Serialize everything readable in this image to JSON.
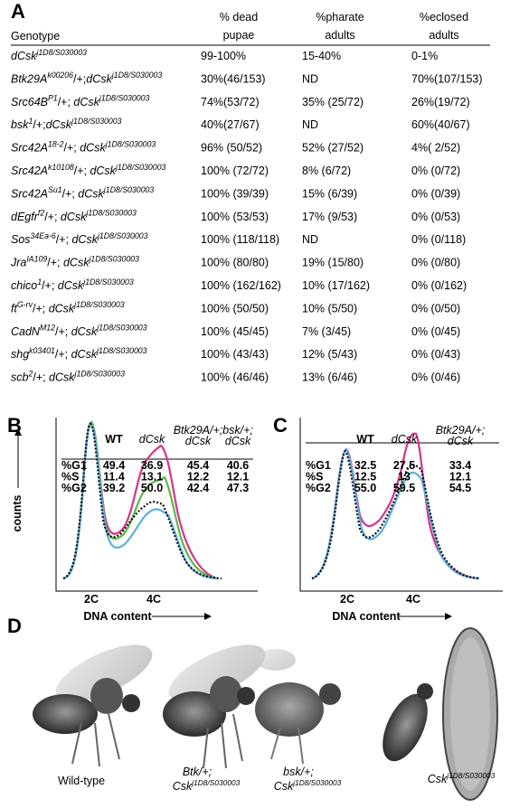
{
  "panel_a": {
    "label": "A",
    "headers": {
      "genotype": "Genotype",
      "dead": [
        "% dead",
        "pupae"
      ],
      "pharate": [
        "%pharate",
        "adults"
      ],
      "eclosed": [
        "%eclosed",
        "adults"
      ]
    },
    "rows": [
      {
        "genotype": [
          [
            "i",
            "dCsk"
          ],
          [
            "s",
            "j1D8/S030003"
          ]
        ],
        "dead": "99-100%",
        "pharate": "15-40%",
        "eclosed": "0-1%"
      },
      {
        "genotype": [
          [
            "i",
            "Btk29A"
          ],
          [
            "s",
            "k00206"
          ],
          [
            "n",
            "/+;"
          ],
          [
            "i",
            "dCsk"
          ],
          [
            "s",
            "j1D8/S030003"
          ]
        ],
        "dead": "30%(46/153)",
        "pharate": "ND",
        "eclosed": "70%(107/153)"
      },
      {
        "genotype": [
          [
            "i",
            "Src64B"
          ],
          [
            "s",
            "P1"
          ],
          [
            "n",
            "/+; "
          ],
          [
            "i",
            "dCsk"
          ],
          [
            "s",
            "j1D8/S030003"
          ]
        ],
        "dead": "74%(53/72)",
        "pharate": "35% (25/72)",
        "eclosed": "26%(19/72)"
      },
      {
        "genotype": [
          [
            "i",
            "bsk"
          ],
          [
            "s",
            "1"
          ],
          [
            "n",
            "/+;"
          ],
          [
            "i",
            "dCsk"
          ],
          [
            "s",
            "j1D8/S030003"
          ]
        ],
        "dead": "40%(27/67)",
        "pharate": "ND",
        "eclosed": "60%(40/67)"
      },
      {
        "genotype": [
          [
            "i",
            "Src42A"
          ],
          [
            "s",
            "18-2"
          ],
          [
            "n",
            "/+; "
          ],
          [
            "i",
            "dCsk"
          ],
          [
            "s",
            "j1D8/S030003"
          ]
        ],
        "dead": "96% (50/52)",
        "pharate": "52% (27/52)",
        "eclosed": "4%( 2/52)"
      },
      {
        "genotype": [
          [
            "i",
            "Src42A"
          ],
          [
            "s",
            "k10108"
          ],
          [
            "n",
            "/+; "
          ],
          [
            "i",
            "dCsk"
          ],
          [
            "s",
            "j1D8/S030003"
          ]
        ],
        "dead": "100% (72/72)",
        "pharate": "8% (6/72)",
        "eclosed": "0% (0/72)"
      },
      {
        "genotype": [
          [
            "i",
            "Src42A"
          ],
          [
            "s",
            "Su1"
          ],
          [
            "n",
            "/+; "
          ],
          [
            "i",
            "dCsk"
          ],
          [
            "s",
            "j1D8/S030003"
          ]
        ],
        "dead": "100% (39/39)",
        "pharate": "15% (6/39)",
        "eclosed": "0% (0/39)"
      },
      {
        "genotype": [
          [
            "i",
            "dEgfr"
          ],
          [
            "s",
            "f2"
          ],
          [
            "n",
            "/+; "
          ],
          [
            "i",
            "dCsk"
          ],
          [
            "s",
            "j1D8/S030003"
          ]
        ],
        "dead": "100% (53/53)",
        "pharate": "17% (9/53)",
        "eclosed": "0% (0/53)"
      },
      {
        "genotype": [
          [
            "i",
            "Sos"
          ],
          [
            "s",
            "34Ea-6"
          ],
          [
            "n",
            "/+; "
          ],
          [
            "i",
            "dCsk"
          ],
          [
            "s",
            "j1D8/S030003"
          ]
        ],
        "dead": "100% (118/118)",
        "pharate": "ND",
        "eclosed": "0% (0/118)"
      },
      {
        "genotype": [
          [
            "i",
            "Jra"
          ],
          [
            "s",
            "IA109"
          ],
          [
            "n",
            "/+; "
          ],
          [
            "i",
            "dCsk"
          ],
          [
            "s",
            "j1D8/S030003"
          ]
        ],
        "dead": "100% (80/80)",
        "pharate": "19% (15/80)",
        "eclosed": "0% (0/80)"
      },
      {
        "genotype": [
          [
            "i",
            "chico"
          ],
          [
            "s",
            "1"
          ],
          [
            "n",
            "/+; "
          ],
          [
            "i",
            "dCsk"
          ],
          [
            "s",
            "j1D8/S030003"
          ]
        ],
        "dead": "100% (162/162)",
        "pharate": "10% (17/162)",
        "eclosed": "0% (0/162)"
      },
      {
        "genotype": [
          [
            "i",
            "ft"
          ],
          [
            "s",
            "G-rv"
          ],
          [
            "n",
            "/+;   "
          ],
          [
            "i",
            "dCsk"
          ],
          [
            "s",
            "j1D8/S030003"
          ]
        ],
        "dead": "100% (50/50)",
        "pharate": "10% (5/50)",
        "eclosed": "0% (0/50)"
      },
      {
        "genotype": [
          [
            "i",
            "CadN"
          ],
          [
            "s",
            "M12"
          ],
          [
            "n",
            "/+; "
          ],
          [
            "i",
            "dCsk"
          ],
          [
            "s",
            "j1D8/S030003"
          ]
        ],
        "dead": "100% (45/45)",
        "pharate": "7% (3/45)",
        "eclosed": "0% (0/45)"
      },
      {
        "genotype": [
          [
            "i",
            "shg"
          ],
          [
            "s",
            "k03401"
          ],
          [
            "n",
            "/+; "
          ],
          [
            "i",
            "dCsk"
          ],
          [
            "s",
            "j1D8/S030003"
          ]
        ],
        "dead": "100% (43/43)",
        "pharate": "12% (5/43)",
        "eclosed": "0% (0/43)"
      },
      {
        "genotype": [
          [
            "i",
            "scb"
          ],
          [
            "s",
            "2"
          ],
          [
            "n",
            "/+;  "
          ],
          [
            "i",
            "dCsk"
          ],
          [
            "s",
            "j1D8/S030003"
          ]
        ],
        "dead": "100% (46/46)",
        "pharate": "13% (6/46)",
        "eclosed": "0% (0/46)"
      }
    ]
  },
  "panel_b": {
    "label": "B",
    "columns": [
      {
        "lines": [
          "WT"
        ],
        "italic": false
      },
      {
        "lines": [
          "dCsk"
        ],
        "italic": true
      },
      {
        "lines": [
          "Btk29A/+;",
          "dCsk"
        ],
        "italic": true
      },
      {
        "lines": [
          "bsk/+;",
          "dCsk"
        ],
        "italic": true
      }
    ],
    "rows": [
      {
        "label": "%G1",
        "values": [
          "49.4",
          "36.9",
          "45.4",
          "40.6"
        ]
      },
      {
        "label": "%S",
        "values": [
          "11.4",
          "13.1",
          "12.2",
          "12.1"
        ]
      },
      {
        "label": "%G2",
        "values": [
          "39.2",
          "50.0",
          "42.4",
          "47.3"
        ]
      }
    ],
    "y_label": "counts",
    "x_ticks": [
      "2C",
      "4C"
    ],
    "x_label": "DNA content"
  },
  "panel_c": {
    "label": "C",
    "columns": [
      {
        "lines": [
          "WT"
        ],
        "italic": false
      },
      {
        "lines": [
          "dCsk"
        ],
        "italic": true
      },
      {
        "lines": [
          "Btk29A/+;",
          "dCsk"
        ],
        "italic": true
      }
    ],
    "rows": [
      {
        "label": "%G1",
        "values": [
          "32.5",
          "27.5",
          "33.4"
        ]
      },
      {
        "label": "%S",
        "values": [
          "12.5",
          "13",
          "12.1"
        ]
      },
      {
        "label": "%G2",
        "values": [
          "55.0",
          "59.5",
          "54.5"
        ]
      }
    ],
    "x_ticks": [
      "2C",
      "4C"
    ],
    "x_label": "DNA content"
  },
  "panel_d": {
    "label": "D",
    "captions": [
      [
        [
          [
            "n",
            "Wild-type"
          ]
        ]
      ],
      [
        [
          [
            "i",
            "Btk/+;"
          ]
        ],
        [
          [
            "i",
            "Csk"
          ],
          [
            "s",
            "j1D8/S030003"
          ]
        ]
      ],
      [
        [
          [
            "i",
            "bsk/+;"
          ]
        ],
        [
          [
            "i",
            "Csk"
          ],
          [
            "s",
            "j1D8/S030003"
          ]
        ]
      ],
      [
        [
          [
            "i",
            "Csk"
          ],
          [
            "s",
            "j1D8/S030003"
          ]
        ]
      ]
    ]
  }
}
